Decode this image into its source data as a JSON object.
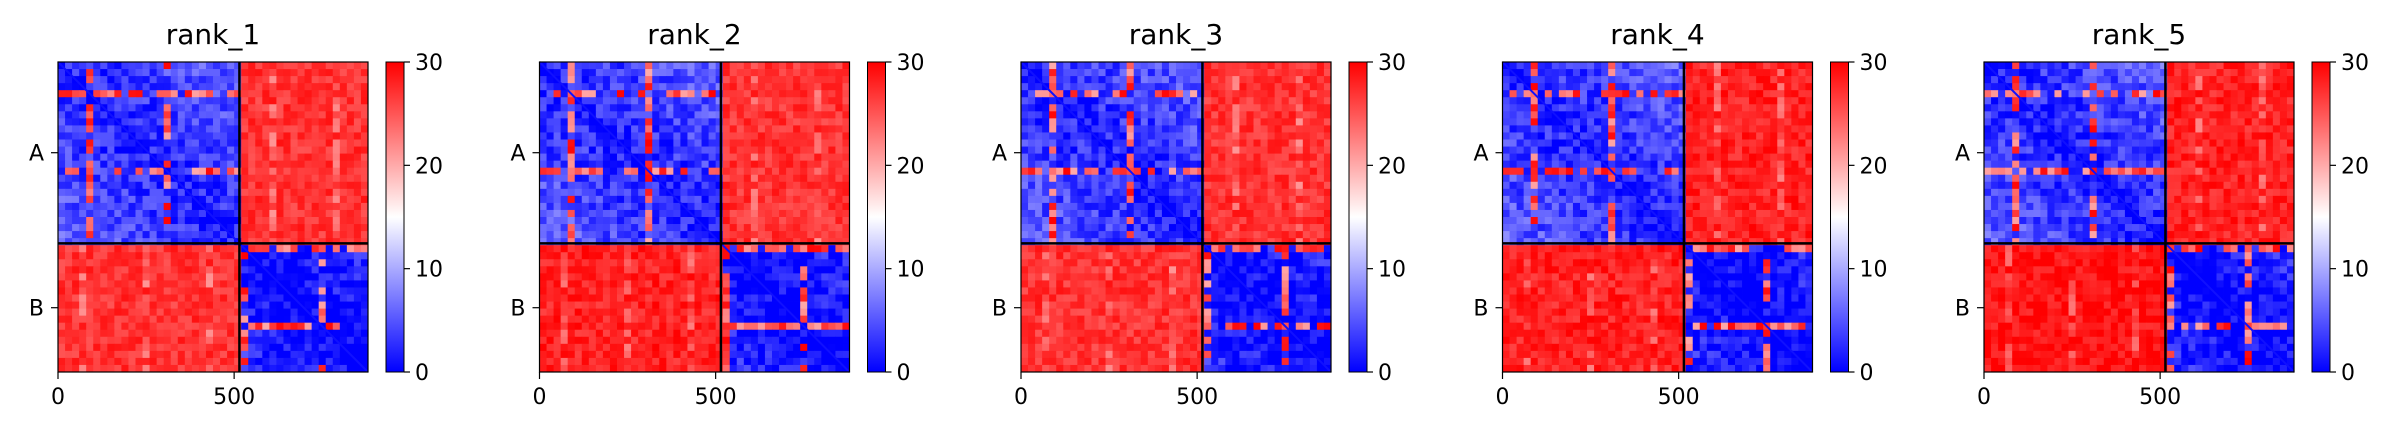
{
  "chart_data": [
    {
      "type": "heatmap",
      "title": "rank_1",
      "x_ticks": [
        0,
        500
      ],
      "xlim": [
        0,
        880
      ],
      "y_tick_labels": [
        "A",
        "B"
      ],
      "chain_boundary": 515,
      "colorbar": {
        "ticks": [
          0,
          10,
          20,
          30
        ],
        "range": [
          0,
          30
        ],
        "colors": [
          "#0000ff",
          "#ffffff",
          "#ff0000"
        ]
      },
      "blocks": [
        {
          "chains": "A-A",
          "level": 8,
          "pattern": "intra"
        },
        {
          "chains": "A-B",
          "level": 27,
          "pattern": "inter"
        },
        {
          "chains": "B-A",
          "level": 27,
          "pattern": "inter"
        },
        {
          "chains": "B-B",
          "level": 6,
          "pattern": "intra"
        }
      ]
    },
    {
      "type": "heatmap",
      "title": "rank_2",
      "x_ticks": [
        0,
        500
      ],
      "xlim": [
        0,
        880
      ],
      "y_tick_labels": [
        "A",
        "B"
      ],
      "chain_boundary": 515,
      "colorbar": {
        "ticks": [
          0,
          10,
          20,
          30
        ],
        "range": [
          0,
          30
        ],
        "colors": [
          "#0000ff",
          "#ffffff",
          "#ff0000"
        ]
      },
      "blocks": [
        {
          "chains": "A-A",
          "level": 8,
          "pattern": "intra"
        },
        {
          "chains": "A-B",
          "level": 27,
          "pattern": "inter"
        },
        {
          "chains": "B-A",
          "level": 28,
          "pattern": "inter"
        },
        {
          "chains": "B-B",
          "level": 6,
          "pattern": "intra"
        }
      ]
    },
    {
      "type": "heatmap",
      "title": "rank_3",
      "x_ticks": [
        0,
        500
      ],
      "xlim": [
        0,
        880
      ],
      "y_tick_labels": [
        "A",
        "B"
      ],
      "chain_boundary": 515,
      "colorbar": {
        "ticks": [
          0,
          10,
          20,
          30
        ],
        "range": [
          0,
          30
        ],
        "colors": [
          "#0000ff",
          "#ffffff",
          "#ff0000"
        ]
      },
      "blocks": [
        {
          "chains": "A-A",
          "level": 8,
          "pattern": "intra"
        },
        {
          "chains": "A-B",
          "level": 27,
          "pattern": "inter"
        },
        {
          "chains": "B-A",
          "level": 27,
          "pattern": "inter"
        },
        {
          "chains": "B-B",
          "level": 6,
          "pattern": "intra"
        }
      ]
    },
    {
      "type": "heatmap",
      "title": "rank_4",
      "x_ticks": [
        0,
        500
      ],
      "xlim": [
        0,
        880
      ],
      "y_tick_labels": [
        "A",
        "B"
      ],
      "chain_boundary": 515,
      "colorbar": {
        "ticks": [
          0,
          10,
          20,
          30
        ],
        "range": [
          0,
          30
        ],
        "colors": [
          "#0000ff",
          "#ffffff",
          "#ff0000"
        ]
      },
      "blocks": [
        {
          "chains": "A-A",
          "level": 8,
          "pattern": "intra"
        },
        {
          "chains": "A-B",
          "level": 28,
          "pattern": "inter"
        },
        {
          "chains": "B-A",
          "level": 28,
          "pattern": "inter"
        },
        {
          "chains": "B-B",
          "level": 6,
          "pattern": "intra"
        }
      ]
    },
    {
      "type": "heatmap",
      "title": "rank_5",
      "x_ticks": [
        0,
        500
      ],
      "xlim": [
        0,
        880
      ],
      "y_tick_labels": [
        "A",
        "B"
      ],
      "chain_boundary": 515,
      "colorbar": {
        "ticks": [
          0,
          10,
          20,
          30
        ],
        "range": [
          0,
          30
        ],
        "colors": [
          "#0000ff",
          "#ffffff",
          "#ff0000"
        ]
      },
      "blocks": [
        {
          "chains": "A-A",
          "level": 8,
          "pattern": "intra"
        },
        {
          "chains": "A-B",
          "level": 28,
          "pattern": "inter"
        },
        {
          "chains": "B-A",
          "level": 29,
          "pattern": "inter"
        },
        {
          "chains": "B-B",
          "level": 6,
          "pattern": "intra"
        }
      ]
    }
  ]
}
